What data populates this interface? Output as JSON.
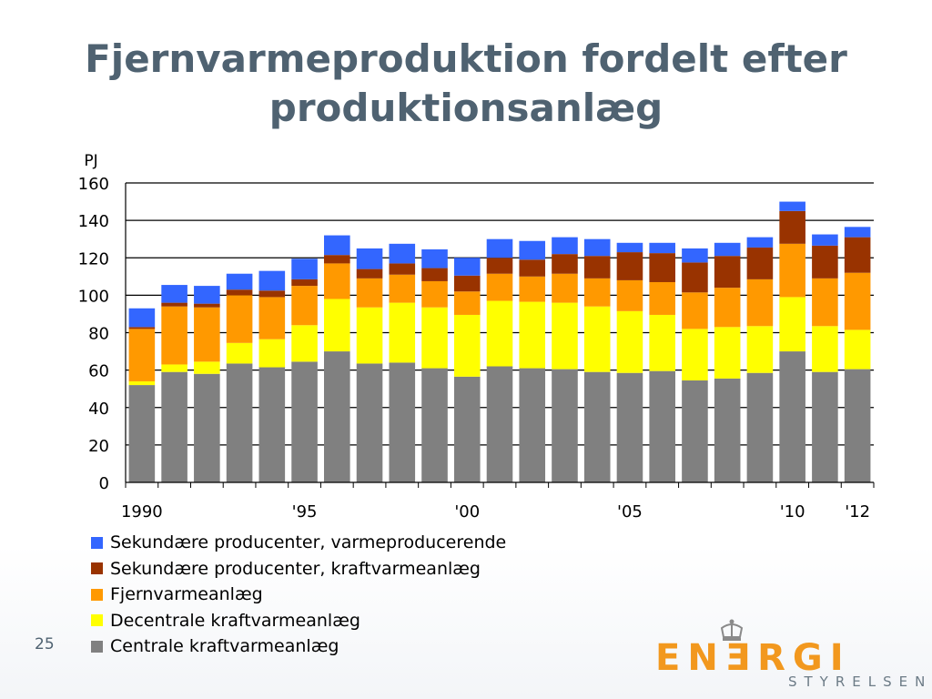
{
  "slide": {
    "title_line1": "Fjernvarmeproduktion fordelt efter",
    "title_line2": "produktionsanlæg",
    "page_number": "25",
    "logo_text": "ENƎRGI",
    "logo_subtext": "STYRELSEN"
  },
  "chart_data": {
    "type": "bar",
    "stacked": true,
    "unit_label": "PJ",
    "ylim": [
      0,
      160
    ],
    "yticks": [
      0,
      20,
      40,
      60,
      80,
      100,
      120,
      140,
      160
    ],
    "grid": true,
    "legend_position": "bottom-left",
    "categories": [
      "1990",
      "1991",
      "1992",
      "1993",
      "1994",
      "1995",
      "1996",
      "1997",
      "1998",
      "1999",
      "2000",
      "2001",
      "2002",
      "2003",
      "2004",
      "2005",
      "2006",
      "2007",
      "2008",
      "2009",
      "2010",
      "2011",
      "2012"
    ],
    "xtick_labels": [
      {
        "index": 0,
        "label": "1990"
      },
      {
        "index": 5,
        "label": "'95"
      },
      {
        "index": 10,
        "label": "'00"
      },
      {
        "index": 15,
        "label": "'05"
      },
      {
        "index": 20,
        "label": "'10"
      },
      {
        "index": 22,
        "label": "'12"
      }
    ],
    "series": [
      {
        "name": "Centrale kraftvarmeanlæg",
        "color": "#808080",
        "values": [
          52,
          59,
          58,
          63.5,
          61.5,
          64.5,
          70,
          63.5,
          64,
          61,
          56.5,
          62,
          61,
          60.5,
          59,
          58.5,
          59.5,
          54.5,
          55.5,
          58.5,
          70,
          59,
          60.5
        ]
      },
      {
        "name": "Decentrale kraftvarmeanlæg",
        "color": "#ffff00",
        "values": [
          2,
          4,
          6.5,
          11,
          15,
          19.5,
          28,
          30,
          32,
          32.5,
          33,
          35,
          35.5,
          35.5,
          35,
          33,
          30,
          27.5,
          27.5,
          25,
          29,
          24.5,
          21
        ]
      },
      {
        "name": "Fjernvarmeanlæg",
        "color": "#ff9900",
        "values": [
          28,
          31,
          29,
          25.5,
          22.5,
          21,
          19,
          15.5,
          15,
          14,
          12.5,
          14.5,
          13.5,
          15.5,
          15,
          16.5,
          17.5,
          19.5,
          21,
          25,
          28.5,
          25.5,
          30.5
        ]
      },
      {
        "name": "Sekundære producenter, kraftvarmeanlæg",
        "color": "#993300",
        "values": [
          1,
          2,
          2,
          3,
          3.5,
          3.5,
          4.5,
          5,
          6,
          7,
          8.5,
          8.5,
          9,
          10.5,
          12,
          15,
          15.5,
          16,
          17,
          17,
          17.5,
          17.5,
          19
        ]
      },
      {
        "name": "Sekundære producenter, varmeproducerende",
        "color": "#3366ff",
        "values": [
          10,
          9.5,
          9.5,
          8.5,
          10.5,
          11,
          10.5,
          11,
          10.5,
          10,
          9.5,
          10,
          10,
          9,
          9,
          5,
          5.5,
          7.5,
          7,
          5.5,
          5,
          6,
          5.5
        ]
      }
    ]
  }
}
